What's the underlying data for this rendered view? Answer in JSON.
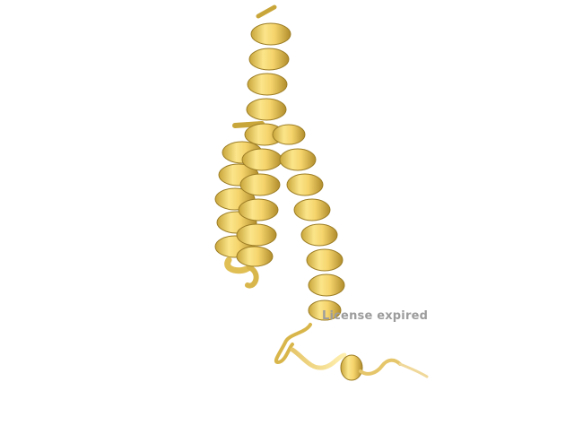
{
  "viewer": {
    "watermark_text": "License expired",
    "watermark_color": "#9c9c9c",
    "background_color": "#ffffff"
  },
  "structure": {
    "representation": "cartoon",
    "color": "#f5d36b",
    "color_light": "#fff1a6",
    "color_dark": "#8a6d1c",
    "elements": [
      "helix-1",
      "helix-2",
      "helix-3",
      "loop-1",
      "loop-2",
      "c-terminal-tail"
    ]
  }
}
